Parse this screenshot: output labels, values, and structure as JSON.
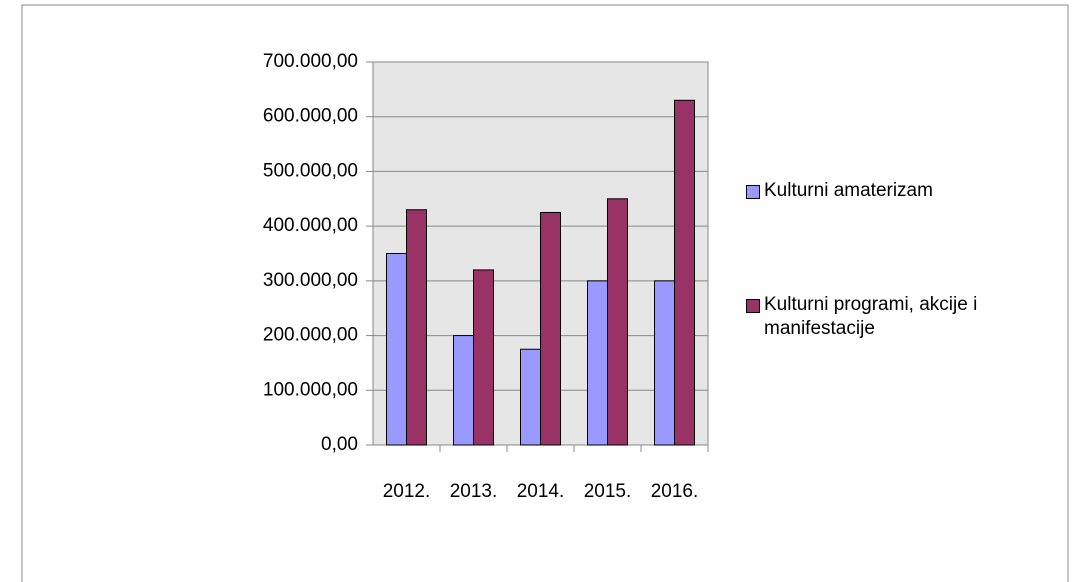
{
  "chart_data": {
    "type": "bar",
    "categories": [
      "2012.",
      "2013.",
      "2014.",
      "2015.",
      "2016."
    ],
    "series": [
      {
        "name": "Kulturni amaterizam",
        "color": "#9999ff",
        "values": [
          350000,
          200000,
          175000,
          300000,
          300000
        ]
      },
      {
        "name": "Kulturni programi, akcije i manifestacije",
        "color": "#993366",
        "values": [
          430000,
          320000,
          425000,
          450000,
          630000
        ]
      }
    ],
    "ylim": [
      0,
      700000
    ],
    "yticks": [
      {
        "value": 0,
        "label": "0,00"
      },
      {
        "value": 100000,
        "label": "100.000,00"
      },
      {
        "value": 200000,
        "label": "200.000,00"
      },
      {
        "value": 300000,
        "label": "300.000,00"
      },
      {
        "value": 400000,
        "label": "400.000,00"
      },
      {
        "value": 500000,
        "label": "500.000,00"
      },
      {
        "value": 600000,
        "label": "600.000,00"
      },
      {
        "value": 700000,
        "label": "700.000,00"
      }
    ],
    "grid": true,
    "legend": "right"
  }
}
